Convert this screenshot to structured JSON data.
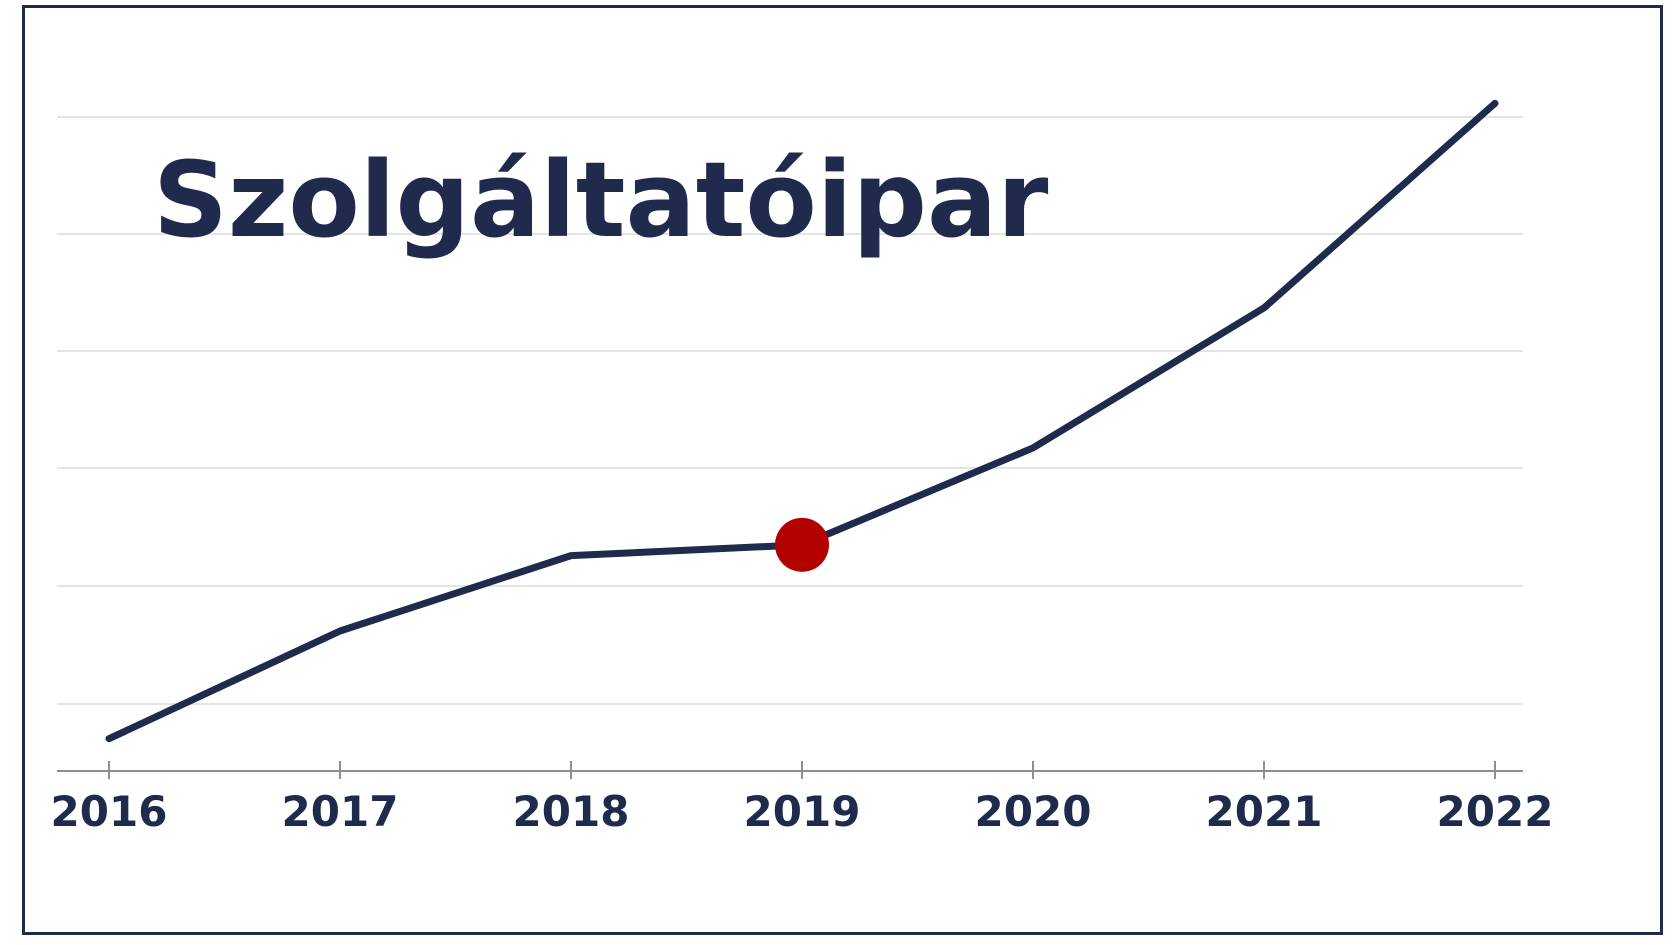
{
  "chart_data": {
    "type": "line",
    "title": "Szolgáltatóipar",
    "xlabel": "",
    "ylabel": "",
    "x": [
      "2016",
      "2017",
      "2018",
      "2019",
      "2020",
      "2021",
      "2022"
    ],
    "series": [
      {
        "values": [
          0.3,
          1.3,
          2.0,
          2.1,
          3.0,
          4.3,
          6.2
        ]
      }
    ],
    "highlight": {
      "x": "2019",
      "value": 2.1,
      "color": "#b30000"
    },
    "ylim": [
      0,
      6.5
    ],
    "y_ticks_shown": false,
    "grid": true,
    "legend": "none",
    "colors": {
      "line": "#1f2a4d",
      "text": "#1f2a4d",
      "grid": "#dcdcdc",
      "highlight": "#b30000",
      "frame": "#1f2a4d"
    }
  }
}
